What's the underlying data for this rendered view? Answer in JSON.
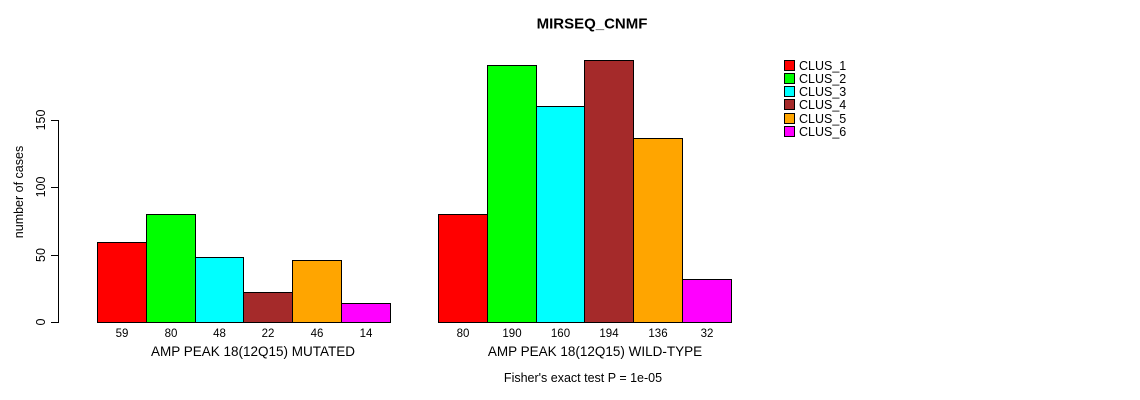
{
  "chart_data": {
    "type": "bar",
    "title": "MIRSEQ_CNMF",
    "ylabel": "number of cases",
    "yticks": [
      0,
      50,
      100,
      150
    ],
    "categories": [
      "CLUS_1",
      "CLUS_2",
      "CLUS_3",
      "CLUS_4",
      "CLUS_5",
      "CLUS_6"
    ],
    "colors": [
      "#FF0000",
      "#00FF00",
      "#00FFFF",
      "#A52A2A",
      "#FFA500",
      "#FF00FF"
    ],
    "groups": [
      {
        "label": "AMP PEAK 18(12Q15) MUTATED",
        "values": [
          59,
          80,
          48,
          22,
          46,
          14
        ]
      },
      {
        "label": "AMP PEAK 18(12Q15) WILD-TYPE",
        "values": [
          80,
          190,
          160,
          194,
          136,
          32
        ]
      }
    ],
    "footnote": "Fisher's exact test P = 1e-05",
    "legend_position": "right",
    "grid": false,
    "background": "#FFFFFF"
  }
}
